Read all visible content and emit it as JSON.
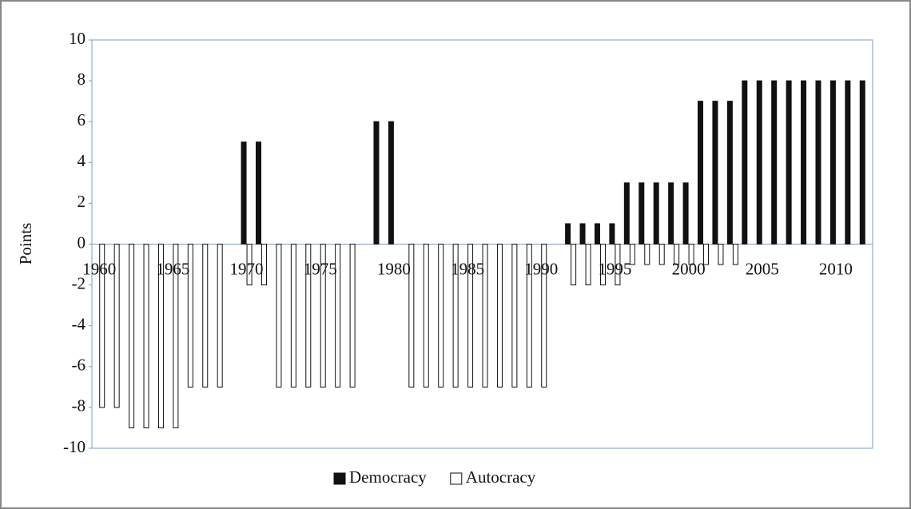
{
  "chart_data": {
    "type": "bar",
    "ylabel": "Points",
    "categories": [
      "1960",
      null,
      null,
      null,
      null,
      "1965",
      null,
      null,
      null,
      null,
      "1970",
      null,
      null,
      null,
      null,
      "1975",
      null,
      null,
      null,
      null,
      "1980",
      null,
      null,
      null,
      null,
      "1985",
      null,
      null,
      null,
      null,
      "1990",
      null,
      null,
      null,
      null,
      "1995",
      null,
      null,
      null,
      null,
      "2000",
      null,
      null,
      null,
      null,
      "2005",
      null,
      null,
      null,
      null,
      "2010",
      null,
      null
    ],
    "series": [
      {
        "name": "Democracy",
        "color": "#111111",
        "values": [
          0,
          0,
          0,
          0,
          0,
          0,
          0,
          0,
          0,
          0,
          5,
          5,
          0,
          0,
          0,
          0,
          0,
          0,
          0,
          6,
          6,
          0,
          0,
          0,
          0,
          0,
          0,
          0,
          0,
          0,
          0,
          0,
          1,
          1,
          1,
          1,
          3,
          3,
          3,
          3,
          3,
          7,
          7,
          7,
          8,
          8,
          8,
          8,
          8,
          8,
          8,
          8,
          8
        ]
      },
      {
        "name": "Autocracy",
        "color": "#ffffff",
        "values": [
          -8,
          -8,
          -9,
          -9,
          -9,
          -9,
          -7,
          -7,
          -7,
          0,
          -2,
          -2,
          -7,
          -7,
          -7,
          -7,
          -7,
          -7,
          0,
          0,
          0,
          -7,
          -7,
          -7,
          -7,
          -7,
          -7,
          -7,
          -7,
          -7,
          -7,
          0,
          -2,
          -2,
          -2,
          -2,
          -1,
          -1,
          -1,
          -1,
          -1,
          -1,
          -1,
          -1,
          0,
          0,
          0,
          0,
          0,
          0,
          0,
          0,
          0
        ]
      }
    ],
    "ylim": [
      -10,
      10
    ],
    "yticks": [
      -10,
      -8,
      -6,
      -4,
      -2,
      0,
      2,
      4,
      6,
      8,
      10
    ],
    "legend": "bottom"
  }
}
